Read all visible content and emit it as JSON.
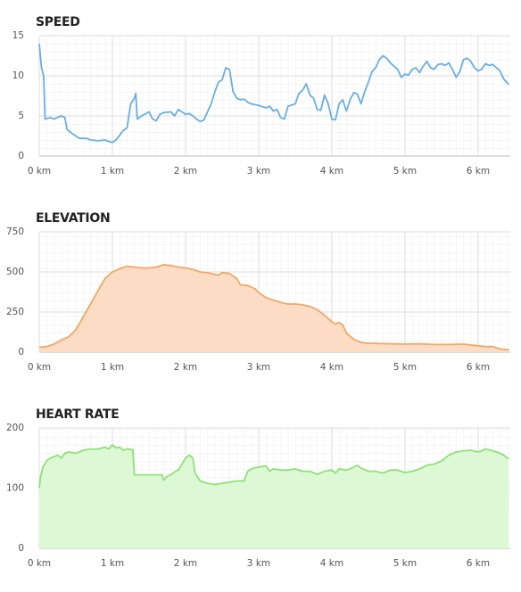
{
  "chart_data": [
    {
      "type": "line",
      "title": "SPEED",
      "color": "#6aaee3",
      "x": [
        0,
        0.03,
        0.06,
        0.08,
        0.15,
        0.2,
        0.3,
        0.35,
        0.38,
        0.45,
        0.5,
        0.55,
        0.65,
        0.7,
        0.8,
        0.9,
        0.95,
        1.0,
        1.05,
        1.1,
        1.15,
        1.2,
        1.25,
        1.3,
        1.32,
        1.34,
        1.4,
        1.5,
        1.55,
        1.6,
        1.65,
        1.7,
        1.8,
        1.85,
        1.9,
        2.0,
        2.05,
        2.1,
        2.15,
        2.2,
        2.25,
        2.3,
        2.35,
        2.4,
        2.45,
        2.5,
        2.55,
        2.6,
        2.65,
        2.7,
        2.75,
        2.8,
        2.85,
        2.9,
        3.0,
        3.1,
        3.15,
        3.2,
        3.25,
        3.3,
        3.35,
        3.4,
        3.5,
        3.55,
        3.6,
        3.65,
        3.7,
        3.75,
        3.8,
        3.85,
        3.9,
        3.95,
        4.0,
        4.05,
        4.1,
        4.15,
        4.2,
        4.25,
        4.3,
        4.35,
        4.4,
        4.45,
        4.5,
        4.55,
        4.6,
        4.65,
        4.7,
        4.75,
        4.8,
        4.85,
        4.9,
        4.95,
        5.0,
        5.05,
        5.1,
        5.15,
        5.2,
        5.25,
        5.3,
        5.35,
        5.4,
        5.45,
        5.5,
        5.55,
        5.6,
        5.65,
        5.7,
        5.75,
        5.8,
        5.85,
        5.9,
        5.95,
        6.0,
        6.05,
        6.1,
        6.15,
        6.2,
        6.25,
        6.3,
        6.35,
        6.4,
        6.42
      ],
      "values": [
        14,
        11,
        10,
        4.6,
        4.8,
        4.6,
        5.0,
        4.8,
        3.3,
        2.8,
        2.5,
        2.2,
        2.2,
        2.0,
        1.9,
        2.0,
        1.8,
        1.7,
        2.0,
        2.6,
        3.2,
        3.5,
        6.5,
        7.2,
        7.8,
        4.6,
        5.0,
        5.5,
        4.6,
        4.4,
        5.2,
        5.4,
        5.5,
        5.0,
        5.8,
        5.2,
        5.3,
        5.0,
        4.6,
        4.3,
        4.5,
        5.5,
        6.5,
        8.0,
        9.2,
        9.5,
        11.0,
        10.8,
        8.0,
        7.2,
        7.0,
        7.1,
        6.7,
        6.5,
        6.3,
        6.0,
        6.2,
        5.6,
        5.8,
        4.8,
        4.6,
        6.2,
        6.5,
        7.8,
        8.2,
        9.0,
        7.6,
        7.2,
        5.8,
        5.7,
        7.6,
        6.5,
        4.6,
        4.5,
        6.5,
        7.0,
        5.6,
        7.0,
        7.9,
        7.7,
        6.5,
        8.0,
        9.2,
        10.5,
        11.0,
        12.0,
        12.5,
        12.2,
        11.6,
        11.2,
        10.8,
        9.8,
        10.2,
        10.1,
        10.8,
        11.0,
        10.4,
        11.2,
        11.8,
        11.0,
        10.8,
        11.4,
        11.5,
        11.3,
        11.6,
        10.8,
        9.8,
        10.5,
        12.0,
        12.2,
        11.8,
        11.0,
        10.6,
        10.8,
        11.5,
        11.3,
        11.4,
        11.0,
        10.6,
        9.6,
        9.1,
        8.9
      ],
      "xlim": [
        0,
        6.44
      ],
      "ylim": [
        0,
        15
      ],
      "yticks": [
        0,
        5,
        10,
        15
      ],
      "xticks": [
        {
          "value": 0,
          "label": "0 km"
        },
        {
          "value": 1,
          "label": "1 km"
        },
        {
          "value": 2,
          "label": "2 km"
        },
        {
          "value": 3,
          "label": "3 km"
        },
        {
          "value": 4,
          "label": "4 km"
        },
        {
          "value": 5,
          "label": "5 km"
        },
        {
          "value": 6,
          "label": "6 km"
        }
      ],
      "grid": true
    },
    {
      "type": "area",
      "title": "ELEVATION",
      "color": "#f0a868",
      "fill_color": "#fcdcc5",
      "x": [
        0,
        0.1,
        0.2,
        0.3,
        0.4,
        0.5,
        0.6,
        0.7,
        0.8,
        0.9,
        1.0,
        1.1,
        1.2,
        1.3,
        1.4,
        1.5,
        1.6,
        1.7,
        1.8,
        1.9,
        2.0,
        2.1,
        2.2,
        2.3,
        2.4,
        2.45,
        2.5,
        2.6,
        2.7,
        2.75,
        2.85,
        2.95,
        3.0,
        3.1,
        3.2,
        3.3,
        3.4,
        3.5,
        3.6,
        3.7,
        3.8,
        3.9,
        4.0,
        4.05,
        4.1,
        4.15,
        4.2,
        4.3,
        4.4,
        4.5,
        4.6,
        4.8,
        5.0,
        5.2,
        5.4,
        5.6,
        5.8,
        6.0,
        6.1,
        6.2,
        6.3,
        6.4,
        6.42
      ],
      "values": [
        30,
        35,
        50,
        75,
        95,
        140,
        220,
        300,
        380,
        460,
        500,
        520,
        535,
        530,
        525,
        525,
        530,
        545,
        540,
        530,
        525,
        515,
        500,
        495,
        485,
        480,
        495,
        490,
        460,
        420,
        415,
        395,
        370,
        340,
        325,
        310,
        300,
        300,
        295,
        285,
        265,
        230,
        190,
        175,
        185,
        170,
        120,
        80,
        60,
        55,
        55,
        52,
        50,
        52,
        48,
        48,
        50,
        40,
        35,
        35,
        20,
        15,
        15
      ],
      "xlim": [
        0,
        6.44
      ],
      "ylim": [
        0,
        750
      ],
      "yticks": [
        0,
        250,
        500,
        750
      ],
      "xticks": [
        {
          "value": 0,
          "label": "0 km"
        },
        {
          "value": 1,
          "label": "1 km"
        },
        {
          "value": 2,
          "label": "2 km"
        },
        {
          "value": 3,
          "label": "3 km"
        },
        {
          "value": 4,
          "label": "4 km"
        },
        {
          "value": 5,
          "label": "5 km"
        },
        {
          "value": 6,
          "label": "6 km"
        }
      ],
      "grid": true
    },
    {
      "type": "area",
      "title": "HEART RATE",
      "color": "#8fe07a",
      "fill_color": "#ddf8d5",
      "x": [
        0,
        0.02,
        0.05,
        0.1,
        0.15,
        0.2,
        0.25,
        0.3,
        0.35,
        0.4,
        0.5,
        0.6,
        0.7,
        0.8,
        0.9,
        0.95,
        1.0,
        1.05,
        1.1,
        1.15,
        1.2,
        1.28,
        1.3,
        1.4,
        1.5,
        1.6,
        1.68,
        1.7,
        1.75,
        1.8,
        1.85,
        1.9,
        1.95,
        2.0,
        2.05,
        2.1,
        2.13,
        2.2,
        2.3,
        2.4,
        2.5,
        2.6,
        2.7,
        2.8,
        2.85,
        2.9,
        3.0,
        3.1,
        3.15,
        3.2,
        3.3,
        3.4,
        3.5,
        3.6,
        3.7,
        3.8,
        3.9,
        4.0,
        4.05,
        4.1,
        4.2,
        4.3,
        4.35,
        4.4,
        4.5,
        4.6,
        4.7,
        4.8,
        4.9,
        5.0,
        5.1,
        5.2,
        5.3,
        5.4,
        5.5,
        5.6,
        5.7,
        5.8,
        5.9,
        6.0,
        6.05,
        6.1,
        6.2,
        6.3,
        6.35,
        6.4,
        6.42
      ],
      "values": [
        100,
        120,
        135,
        145,
        150,
        152,
        155,
        150,
        158,
        160,
        158,
        163,
        165,
        165,
        168,
        165,
        172,
        167,
        168,
        163,
        165,
        164,
        122,
        122,
        122,
        122,
        122,
        113,
        120,
        122,
        127,
        130,
        140,
        150,
        155,
        150,
        125,
        112,
        108,
        106,
        108,
        110,
        112,
        112,
        128,
        132,
        135,
        137,
        128,
        132,
        130,
        130,
        132,
        128,
        128,
        123,
        128,
        130,
        125,
        132,
        130,
        135,
        138,
        133,
        128,
        128,
        125,
        130,
        130,
        126,
        128,
        132,
        138,
        140,
        145,
        155,
        160,
        162,
        163,
        160,
        162,
        165,
        162,
        158,
        155,
        150,
        150
      ],
      "xlim": [
        0,
        6.44
      ],
      "ylim": [
        0,
        200
      ],
      "yticks": [
        0,
        100,
        200
      ],
      "xticks": [
        {
          "value": 0,
          "label": "0 km"
        },
        {
          "value": 1,
          "label": "1 km"
        },
        {
          "value": 2,
          "label": "2 km"
        },
        {
          "value": 3,
          "label": "3 km"
        },
        {
          "value": 4,
          "label": "4 km"
        },
        {
          "value": 5,
          "label": "5 km"
        },
        {
          "value": 6,
          "label": "6 km"
        }
      ],
      "grid": true
    }
  ]
}
